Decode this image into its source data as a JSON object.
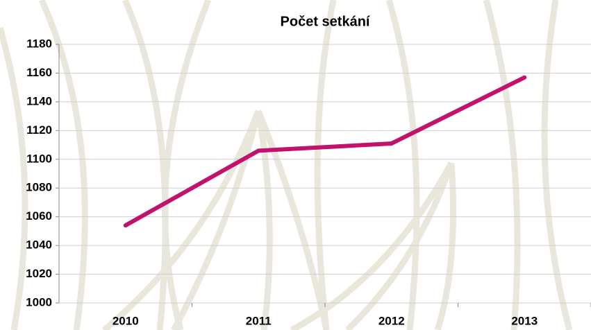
{
  "chart_data": {
    "type": "line",
    "title": "Počet setkání",
    "categories": [
      "2010",
      "2011",
      "2012",
      "2013"
    ],
    "series": [
      {
        "name": "Počet setkání",
        "color": "#c2126e",
        "values": [
          1054,
          1106,
          1111,
          1157
        ]
      }
    ],
    "ylim": [
      1000,
      1180
    ],
    "yticks": [
      1000,
      1020,
      1040,
      1060,
      1080,
      1100,
      1120,
      1140,
      1160,
      1180
    ],
    "grid": true
  }
}
